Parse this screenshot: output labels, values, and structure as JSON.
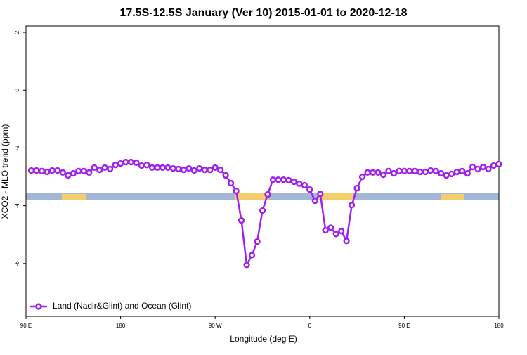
{
  "chart_data": {
    "type": "line",
    "title": "17.5S-12.5S January (Ver 10)   2015-01-01 to 2020-12-18",
    "x_label": "Longitude (deg E)",
    "y_label": "XCO2 - MLO trend (ppm)",
    "xlim": [
      90,
      540
    ],
    "ylim": [
      -7.83,
      2.22
    ],
    "xticks": [
      {
        "value": 90,
        "label": "90 E"
      },
      {
        "value": 180,
        "label": "180"
      },
      {
        "value": 270,
        "label": "90 W"
      },
      {
        "value": 360,
        "label": "0"
      },
      {
        "value": 450,
        "label": "90 E"
      },
      {
        "value": 540,
        "label": "180"
      }
    ],
    "yticks": [
      2,
      0,
      -2,
      -4,
      -6
    ],
    "legend": "bottomleft",
    "x": [
      95,
      100,
      105,
      110,
      115,
      120,
      125,
      130,
      135,
      140,
      145,
      150,
      155,
      160,
      165,
      170,
      175,
      180,
      185,
      190,
      195,
      200,
      205,
      210,
      215,
      220,
      225,
      230,
      235,
      240,
      245,
      250,
      255,
      260,
      265,
      270,
      275,
      280,
      285,
      290,
      295,
      300,
      305,
      310,
      315,
      320,
      325,
      330,
      335,
      340,
      345,
      350,
      355,
      360,
      365,
      370,
      375,
      380,
      385,
      390,
      395,
      400,
      405,
      410,
      415,
      420,
      425,
      430,
      435,
      440,
      445,
      450,
      455,
      460,
      465,
      470,
      475,
      480,
      485,
      490,
      495,
      500,
      505,
      510,
      515,
      520,
      525,
      530,
      535,
      540
    ],
    "series": [
      {
        "name": "Land (Nadir&Glint) and Ocean (Glint)",
        "color": "#a020f0",
        "values": [
          -2.78,
          -2.78,
          -2.8,
          -2.83,
          -2.78,
          -2.78,
          -2.85,
          -2.95,
          -2.88,
          -2.8,
          -2.8,
          -2.85,
          -2.68,
          -2.76,
          -2.68,
          -2.73,
          -2.59,
          -2.54,
          -2.49,
          -2.49,
          -2.51,
          -2.61,
          -2.59,
          -2.68,
          -2.68,
          -2.68,
          -2.68,
          -2.71,
          -2.73,
          -2.76,
          -2.71,
          -2.78,
          -2.71,
          -2.76,
          -2.76,
          -2.68,
          -2.76,
          -2.95,
          -3.22,
          -3.49,
          -4.51,
          -6.05,
          -5.71,
          -5.24,
          -4.17,
          -3.61,
          -3.1,
          -3.1,
          -3.1,
          -3.12,
          -3.17,
          -3.24,
          -3.29,
          -3.44,
          -3.83,
          -3.59,
          -4.85,
          -4.76,
          -4.98,
          -4.88,
          -5.22,
          -3.98,
          -3.39,
          -3.0,
          -2.85,
          -2.85,
          -2.85,
          -2.93,
          -2.8,
          -2.88,
          -2.8,
          -2.8,
          -2.8,
          -2.8,
          -2.83,
          -2.83,
          -2.78,
          -2.8,
          -2.88,
          -2.95,
          -2.9,
          -2.83,
          -2.8,
          -2.88,
          -2.66,
          -2.73,
          -2.66,
          -2.73,
          -2.61,
          -2.56
        ]
      }
    ]
  }
}
